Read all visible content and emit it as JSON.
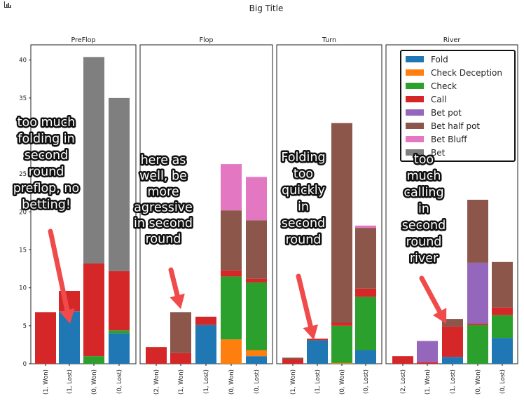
{
  "app": {
    "title": "Big Title",
    "icon": "bar-chart-icon"
  },
  "colors": {
    "Fold": "#1f77b4",
    "Check Deception": "#ff7f0e",
    "Check": "#2ca02c",
    "Call": "#d62728",
    "Bet pot": "#9467bd",
    "Bet half pot": "#8c564b",
    "Bet Bluff": "#e377c2",
    "Bet": "#7f7f7f",
    "arrow": "#f04a4a"
  },
  "chart_data": [
    {
      "type": "bar",
      "stacked": true,
      "title": "PreFlop",
      "ylim": [
        0,
        42
      ],
      "yticks": [
        0,
        5,
        10,
        15,
        20,
        25,
        30,
        35,
        40
      ],
      "categories": [
        "(1, Won)",
        "(1, Lost)",
        "(0, Won)",
        "(0, Lost)"
      ],
      "series": [
        {
          "name": "Fold",
          "values": [
            0,
            6.9,
            0,
            4.0
          ]
        },
        {
          "name": "Check Deception",
          "values": [
            0,
            0,
            0,
            0
          ]
        },
        {
          "name": "Check",
          "values": [
            0,
            0,
            1.0,
            0.4
          ]
        },
        {
          "name": "Call",
          "values": [
            6.8,
            2.7,
            12.2,
            7.8
          ]
        },
        {
          "name": "Bet pot",
          "values": [
            0,
            0,
            0,
            0
          ]
        },
        {
          "name": "Bet half pot",
          "values": [
            0,
            0,
            0,
            0
          ]
        },
        {
          "name": "Bet Bluff",
          "values": [
            0,
            0,
            0,
            0
          ]
        },
        {
          "name": "Bet",
          "values": [
            0,
            0,
            27.2,
            22.8
          ]
        }
      ],
      "annotation": {
        "lines": [
          "too much",
          "folding in",
          "second",
          "round",
          "preflop, no",
          "betting!"
        ]
      }
    },
    {
      "type": "bar",
      "stacked": true,
      "title": "Flop",
      "ylim": [
        0,
        42
      ],
      "categories": [
        "(2, Won)",
        "(1, Won)",
        "(1, Lost)",
        "(0, Won)",
        "(0, Lost)"
      ],
      "series": [
        {
          "name": "Fold",
          "values": [
            0,
            0,
            5.1,
            0,
            1.0
          ]
        },
        {
          "name": "Check Deception",
          "values": [
            0,
            0,
            0,
            3.2,
            0.8
          ]
        },
        {
          "name": "Check",
          "values": [
            0,
            0,
            0,
            8.3,
            8.9
          ]
        },
        {
          "name": "Call",
          "values": [
            2.2,
            1.4,
            1.1,
            0.8,
            0.5
          ]
        },
        {
          "name": "Bet pot",
          "values": [
            0,
            0,
            0,
            0,
            0
          ]
        },
        {
          "name": "Bet half pot",
          "values": [
            0,
            5.4,
            0,
            7.9,
            7.7
          ]
        },
        {
          "name": "Bet Bluff",
          "values": [
            0,
            0,
            0,
            6.1,
            5.7
          ]
        },
        {
          "name": "Bet",
          "values": [
            0,
            0,
            0,
            0,
            0
          ]
        }
      ],
      "annotation": {
        "lines": [
          "here as",
          "well, be",
          "more",
          "agressive",
          "in second",
          "round"
        ]
      }
    },
    {
      "type": "bar",
      "stacked": true,
      "title": "Turn",
      "ylim": [
        0,
        42
      ],
      "categories": [
        "(1, Won)",
        "(1, Lost)",
        "(0, Won)",
        "(0, Lost)"
      ],
      "series": [
        {
          "name": "Fold",
          "values": [
            0,
            3.1,
            0,
            1.8
          ]
        },
        {
          "name": "Check Deception",
          "values": [
            0,
            0,
            0.1,
            0
          ]
        },
        {
          "name": "Check",
          "values": [
            0,
            0,
            4.9,
            7.0
          ]
        },
        {
          "name": "Call",
          "values": [
            0.6,
            0.2,
            0.4,
            1.1
          ]
        },
        {
          "name": "Bet pot",
          "values": [
            0,
            0,
            0,
            0
          ]
        },
        {
          "name": "Bet half pot",
          "values": [
            0.2,
            0,
            26.3,
            8.0
          ]
        },
        {
          "name": "Bet Bluff",
          "values": [
            0,
            0,
            0,
            0.3
          ]
        },
        {
          "name": "Bet",
          "values": [
            0,
            0,
            0,
            0
          ]
        }
      ],
      "annotation": {
        "lines": [
          "Folding",
          "too",
          "quickly",
          "in",
          "second",
          "round"
        ]
      }
    },
    {
      "type": "bar",
      "stacked": true,
      "title": "River",
      "ylim": [
        0,
        42
      ],
      "categories": [
        "(2, Lost)",
        "(1, Won)",
        "(1, Lost)",
        "(0, Won)",
        "(0, Lost)"
      ],
      "series": [
        {
          "name": "Fold",
          "values": [
            0,
            0,
            0.9,
            0,
            3.4
          ]
        },
        {
          "name": "Check Deception",
          "values": [
            0,
            0,
            0,
            0,
            0
          ]
        },
        {
          "name": "Check",
          "values": [
            0,
            0,
            0,
            5.1,
            3.0
          ]
        },
        {
          "name": "Call",
          "values": [
            1.0,
            0.2,
            4.0,
            0.2,
            1.0
          ]
        },
        {
          "name": "Bet pot",
          "values": [
            0,
            2.8,
            0,
            8.0,
            0
          ]
        },
        {
          "name": "Bet half pot",
          "values": [
            0,
            0,
            1.0,
            8.3,
            6.0
          ]
        },
        {
          "name": "Bet Bluff",
          "values": [
            0,
            0,
            0,
            0,
            0
          ]
        },
        {
          "name": "Bet",
          "values": [
            0,
            0,
            0,
            0,
            0
          ]
        }
      ],
      "legend": {
        "placement": "top-right",
        "entries": [
          "Fold",
          "Check Deception",
          "Check",
          "Call",
          "Bet pot",
          "Bet half pot",
          "Bet Bluff",
          "Bet"
        ]
      },
      "annotation": {
        "lines": [
          "too",
          "much",
          "calling",
          "in",
          "second",
          "round",
          "river"
        ]
      }
    }
  ]
}
